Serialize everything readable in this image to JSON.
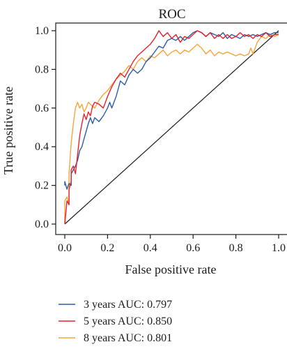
{
  "chart_data": {
    "type": "line",
    "title": "ROC",
    "xlabel": "False positive rate",
    "ylabel": "True positive rate",
    "xlim": [
      0,
      1
    ],
    "ylim": [
      0,
      1
    ],
    "xticks": [
      "0.0",
      "0.2",
      "0.4",
      "0.6",
      "0.8",
      "1.0"
    ],
    "yticks": [
      "0.0",
      "0.2",
      "0.4",
      "0.6",
      "0.8",
      "1.0"
    ],
    "grid": false,
    "legend_position": "bottom",
    "diagonal": [
      [
        0,
        0
      ],
      [
        1,
        1
      ]
    ],
    "series": [
      {
        "name": "3 years AUC: 0.797",
        "color": "#2a5caa",
        "points": [
          [
            0.0,
            0.2
          ],
          [
            0.0,
            0.22
          ],
          [
            0.01,
            0.18
          ],
          [
            0.02,
            0.21
          ],
          [
            0.03,
            0.2
          ],
          [
            0.03,
            0.26
          ],
          [
            0.04,
            0.28
          ],
          [
            0.05,
            0.3
          ],
          [
            0.06,
            0.33
          ],
          [
            0.07,
            0.38
          ],
          [
            0.08,
            0.4
          ],
          [
            0.09,
            0.44
          ],
          [
            0.1,
            0.48
          ],
          [
            0.11,
            0.52
          ],
          [
            0.12,
            0.55
          ],
          [
            0.13,
            0.52
          ],
          [
            0.14,
            0.55
          ],
          [
            0.16,
            0.53
          ],
          [
            0.18,
            0.56
          ],
          [
            0.2,
            0.6
          ],
          [
            0.21,
            0.63
          ],
          [
            0.22,
            0.6
          ],
          [
            0.24,
            0.66
          ],
          [
            0.25,
            0.7
          ],
          [
            0.26,
            0.74
          ],
          [
            0.28,
            0.72
          ],
          [
            0.3,
            0.77
          ],
          [
            0.32,
            0.8
          ],
          [
            0.34,
            0.78
          ],
          [
            0.36,
            0.8
          ],
          [
            0.38,
            0.84
          ],
          [
            0.4,
            0.86
          ],
          [
            0.42,
            0.89
          ],
          [
            0.44,
            0.92
          ],
          [
            0.46,
            0.91
          ],
          [
            0.48,
            0.95
          ],
          [
            0.5,
            0.96
          ],
          [
            0.52,
            0.95
          ],
          [
            0.54,
            0.97
          ],
          [
            0.56,
            0.95
          ],
          [
            0.58,
            0.97
          ],
          [
            0.6,
            0.99
          ],
          [
            0.62,
            1.0
          ],
          [
            0.64,
            0.99
          ],
          [
            0.66,
            0.97
          ],
          [
            0.68,
            0.99
          ],
          [
            0.7,
            0.98
          ],
          [
            0.72,
            0.97
          ],
          [
            0.74,
            0.99
          ],
          [
            0.76,
            0.96
          ],
          [
            0.78,
            0.98
          ],
          [
            0.8,
            0.97
          ],
          [
            0.82,
            0.96
          ],
          [
            0.84,
            0.98
          ],
          [
            0.86,
            0.97
          ],
          [
            0.88,
            0.98
          ],
          [
            0.9,
            0.97
          ],
          [
            0.92,
            0.98
          ],
          [
            0.94,
            0.99
          ],
          [
            0.96,
            0.98
          ],
          [
            0.98,
            0.99
          ],
          [
            1.0,
            0.99
          ]
        ]
      },
      {
        "name": "5 years AUC: 0.850",
        "color": "#e8202a",
        "points": [
          [
            0.0,
            0.0
          ],
          [
            0.01,
            0.12
          ],
          [
            0.02,
            0.1
          ],
          [
            0.02,
            0.18
          ],
          [
            0.03,
            0.22
          ],
          [
            0.03,
            0.28
          ],
          [
            0.04,
            0.3
          ],
          [
            0.05,
            0.26
          ],
          [
            0.06,
            0.36
          ],
          [
            0.07,
            0.46
          ],
          [
            0.08,
            0.52
          ],
          [
            0.09,
            0.57
          ],
          [
            0.1,
            0.54
          ],
          [
            0.11,
            0.58
          ],
          [
            0.12,
            0.56
          ],
          [
            0.13,
            0.61
          ],
          [
            0.14,
            0.63
          ],
          [
            0.16,
            0.62
          ],
          [
            0.18,
            0.6
          ],
          [
            0.2,
            0.66
          ],
          [
            0.22,
            0.71
          ],
          [
            0.24,
            0.75
          ],
          [
            0.26,
            0.78
          ],
          [
            0.28,
            0.76
          ],
          [
            0.3,
            0.8
          ],
          [
            0.32,
            0.84
          ],
          [
            0.34,
            0.87
          ],
          [
            0.36,
            0.89
          ],
          [
            0.38,
            0.91
          ],
          [
            0.4,
            0.93
          ],
          [
            0.42,
            0.96
          ],
          [
            0.44,
            1.0
          ],
          [
            0.46,
            0.97
          ],
          [
            0.48,
            0.99
          ],
          [
            0.5,
            0.96
          ],
          [
            0.52,
            0.98
          ],
          [
            0.54,
            0.94
          ],
          [
            0.56,
            0.97
          ],
          [
            0.58,
            0.96
          ],
          [
            0.6,
            0.98
          ],
          [
            0.62,
            1.0
          ],
          [
            0.64,
            0.99
          ],
          [
            0.66,
            0.97
          ],
          [
            0.68,
            0.99
          ],
          [
            0.7,
            0.96
          ],
          [
            0.72,
            0.98
          ],
          [
            0.74,
            0.96
          ],
          [
            0.76,
            0.98
          ],
          [
            0.78,
            0.96
          ],
          [
            0.8,
            0.97
          ],
          [
            0.82,
            0.99
          ],
          [
            0.84,
            0.97
          ],
          [
            0.86,
            0.98
          ],
          [
            0.88,
            0.96
          ],
          [
            0.9,
            0.98
          ],
          [
            0.92,
            0.97
          ],
          [
            0.94,
            0.99
          ],
          [
            0.96,
            0.97
          ],
          [
            0.98,
            0.98
          ],
          [
            1.0,
            0.98
          ]
        ]
      },
      {
        "name": "8 years AUC: 0.801",
        "color": "#f4a53a",
        "points": [
          [
            0.0,
            0.0
          ],
          [
            0.0,
            0.12
          ],
          [
            0.01,
            0.14
          ],
          [
            0.02,
            0.1
          ],
          [
            0.02,
            0.26
          ],
          [
            0.03,
            0.42
          ],
          [
            0.04,
            0.52
          ],
          [
            0.05,
            0.6
          ],
          [
            0.06,
            0.63
          ],
          [
            0.07,
            0.6
          ],
          [
            0.08,
            0.62
          ],
          [
            0.09,
            0.58
          ],
          [
            0.1,
            0.6
          ],
          [
            0.11,
            0.63
          ],
          [
            0.12,
            0.62
          ],
          [
            0.14,
            0.6
          ],
          [
            0.16,
            0.64
          ],
          [
            0.18,
            0.67
          ],
          [
            0.2,
            0.69
          ],
          [
            0.22,
            0.72
          ],
          [
            0.24,
            0.75
          ],
          [
            0.26,
            0.77
          ],
          [
            0.28,
            0.79
          ],
          [
            0.3,
            0.82
          ],
          [
            0.32,
            0.8
          ],
          [
            0.34,
            0.84
          ],
          [
            0.36,
            0.86
          ],
          [
            0.38,
            0.84
          ],
          [
            0.4,
            0.87
          ],
          [
            0.42,
            0.86
          ],
          [
            0.44,
            0.88
          ],
          [
            0.46,
            0.9
          ],
          [
            0.48,
            0.87
          ],
          [
            0.5,
            0.89
          ],
          [
            0.52,
            0.9
          ],
          [
            0.54,
            0.88
          ],
          [
            0.56,
            0.9
          ],
          [
            0.58,
            0.89
          ],
          [
            0.6,
            0.91
          ],
          [
            0.62,
            0.93
          ],
          [
            0.64,
            0.91
          ],
          [
            0.66,
            0.88
          ],
          [
            0.68,
            0.9
          ],
          [
            0.7,
            0.87
          ],
          [
            0.72,
            0.89
          ],
          [
            0.74,
            0.88
          ],
          [
            0.76,
            0.89
          ],
          [
            0.78,
            0.88
          ],
          [
            0.8,
            0.87
          ],
          [
            0.82,
            0.88
          ],
          [
            0.84,
            0.87
          ],
          [
            0.86,
            0.88
          ],
          [
            0.87,
            0.91
          ],
          [
            0.88,
            0.88
          ],
          [
            0.9,
            0.94
          ],
          [
            0.92,
            0.97
          ],
          [
            0.94,
            0.96
          ],
          [
            0.96,
            0.98
          ],
          [
            0.98,
            0.97
          ],
          [
            1.0,
            0.98
          ]
        ]
      }
    ]
  }
}
